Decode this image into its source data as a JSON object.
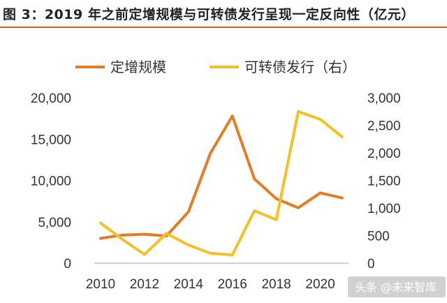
{
  "header": {
    "title": "图 3：2019 年之前定增规模与可转债发行呈现一定反向性（亿元）"
  },
  "watermark": {
    "text": "头条 @未来智库"
  },
  "colors": {
    "accent": "#d45e13",
    "series_left": "#e27c26",
    "series_right": "#f5bf27"
  },
  "chart_data": {
    "type": "line",
    "title": "图 3：2019 年之前定增规模与可转债发行呈现一定反向性（亿元）",
    "x": [
      2010,
      2011,
      2012,
      2013,
      2014,
      2015,
      2016,
      2017,
      2018,
      2019,
      2020,
      2021
    ],
    "x_ticks": [
      "2010",
      "2012",
      "2014",
      "2016",
      "2018",
      "2020"
    ],
    "y_left_ticks": [
      "0",
      "5,000",
      "10,000",
      "15,000",
      "20,000"
    ],
    "y_right_ticks": [
      "0",
      "500",
      "1,000",
      "1,500",
      "2,000",
      "2,500",
      "3,000"
    ],
    "ylim_left": [
      0,
      20000
    ],
    "ylim_right": [
      0,
      3000
    ],
    "grid": false,
    "legend_position": "top",
    "series": [
      {
        "name": "定增规模",
        "axis": "left",
        "color": "#e27c26",
        "values": [
          3000,
          3400,
          3500,
          3300,
          6200,
          13300,
          17800,
          10200,
          7800,
          6700,
          8500,
          7900
        ]
      },
      {
        "name": "可转债发行（右）",
        "axis": "right",
        "color": "#f5bf27",
        "values": [
          730,
          430,
          160,
          540,
          330,
          180,
          150,
          950,
          790,
          2750,
          2610,
          2290
        ]
      }
    ]
  }
}
